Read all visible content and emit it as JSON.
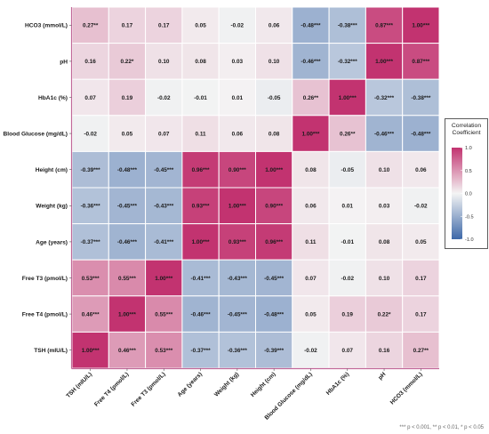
{
  "chart_data": {
    "type": "heatmap",
    "colors": {
      "negative": "#3d68a8",
      "zero": "#f4f4f4",
      "positive": "#c23370"
    },
    "legend": {
      "title_lines": [
        "Correlation",
        "Coefficient"
      ],
      "ticks": [
        1.0,
        0.5,
        0.0,
        -0.5,
        -1.0
      ],
      "tick_labels": [
        "1.0",
        "0.5",
        "0.0",
        "-0.5",
        "-1.0"
      ],
      "range": [
        -1,
        1
      ],
      "placement": "right"
    },
    "x_labels": [
      "TSH (mIU/L)",
      "Free T4 (pmol/L)",
      "Free T3 (pmol/L)",
      "Age (years)",
      "Weight (kg)",
      "Height (cm)",
      "Blood Glucose (mg/dL)",
      "HbA1c (%)",
      "pH",
      "HCO3 (mmol/L)"
    ],
    "y_labels": [
      "HCO3 (mmol/L)",
      "pH",
      "HbA1c (%)",
      "Blood Glucose (mg/dL)",
      "Height (cm)",
      "Weight (kg)",
      "Age (years)",
      "Free T3 (pmol/L)",
      "Free T4 (pmol/L)",
      "TSH (mIU/L)"
    ],
    "values": [
      [
        0.27,
        0.17,
        0.17,
        0.05,
        -0.02,
        0.06,
        -0.48,
        -0.38,
        0.87,
        1.0
      ],
      [
        0.16,
        0.22,
        0.1,
        0.08,
        0.03,
        0.1,
        -0.46,
        -0.32,
        1.0,
        0.87
      ],
      [
        0.07,
        0.19,
        -0.02,
        -0.01,
        0.01,
        -0.05,
        0.26,
        1.0,
        -0.32,
        -0.38
      ],
      [
        -0.02,
        0.05,
        0.07,
        0.11,
        0.06,
        0.08,
        1.0,
        0.26,
        -0.46,
        -0.48
      ],
      [
        -0.39,
        -0.48,
        -0.45,
        0.96,
        0.9,
        1.0,
        0.08,
        -0.05,
        0.1,
        0.06
      ],
      [
        -0.36,
        -0.45,
        -0.43,
        0.93,
        1.0,
        0.9,
        0.06,
        0.01,
        0.03,
        -0.02
      ],
      [
        -0.37,
        -0.46,
        -0.41,
        1.0,
        0.93,
        0.96,
        0.11,
        -0.01,
        0.08,
        0.05
      ],
      [
        0.53,
        0.55,
        1.0,
        -0.41,
        -0.43,
        -0.45,
        0.07,
        -0.02,
        0.1,
        0.17
      ],
      [
        0.46,
        1.0,
        0.55,
        -0.46,
        -0.45,
        -0.48,
        0.05,
        0.19,
        0.22,
        0.17
      ],
      [
        1.0,
        0.46,
        0.53,
        -0.37,
        -0.36,
        -0.39,
        -0.02,
        0.07,
        0.16,
        0.27
      ]
    ],
    "cell_labels": [
      [
        "0.27**",
        "0.17",
        "0.17",
        "0.05",
        "-0.02",
        "0.06",
        "-0.48***",
        "-0.38***",
        "0.87***",
        "1.00***"
      ],
      [
        "0.16",
        "0.22*",
        "0.10",
        "0.08",
        "0.03",
        "0.10",
        "-0.46***",
        "-0.32***",
        "1.00***",
        "0.87***"
      ],
      [
        "0.07",
        "0.19",
        "-0.02",
        "-0.01",
        "0.01",
        "-0.05",
        "0.26**",
        "1.00***",
        "-0.32***",
        "-0.38***"
      ],
      [
        "-0.02",
        "0.05",
        "0.07",
        "0.11",
        "0.06",
        "0.08",
        "1.00***",
        "0.26**",
        "-0.46***",
        "-0.48***"
      ],
      [
        "-0.39***",
        "-0.48***",
        "-0.45***",
        "0.96***",
        "0.90***",
        "1.00***",
        "0.08",
        "-0.05",
        "0.10",
        "0.06"
      ],
      [
        "-0.36***",
        "-0.45***",
        "-0.43***",
        "0.93***",
        "1.00***",
        "0.90***",
        "0.06",
        "0.01",
        "0.03",
        "-0.02"
      ],
      [
        "-0.37***",
        "-0.46***",
        "-0.41***",
        "1.00***",
        "0.93***",
        "0.96***",
        "0.11",
        "-0.01",
        "0.08",
        "0.05"
      ],
      [
        "0.53***",
        "0.55***",
        "1.00***",
        "-0.41***",
        "-0.43***",
        "-0.45***",
        "0.07",
        "-0.02",
        "0.10",
        "0.17"
      ],
      [
        "0.46***",
        "1.00***",
        "0.55***",
        "-0.46***",
        "-0.45***",
        "-0.48***",
        "0.05",
        "0.19",
        "0.22*",
        "0.17"
      ],
      [
        "1.00***",
        "0.46***",
        "0.53***",
        "-0.37***",
        "-0.36***",
        "-0.39***",
        "-0.02",
        "0.07",
        "0.16",
        "0.27**"
      ]
    ],
    "footnote": "*** p < 0.001, ** p < 0.01, * p < 0.05"
  }
}
